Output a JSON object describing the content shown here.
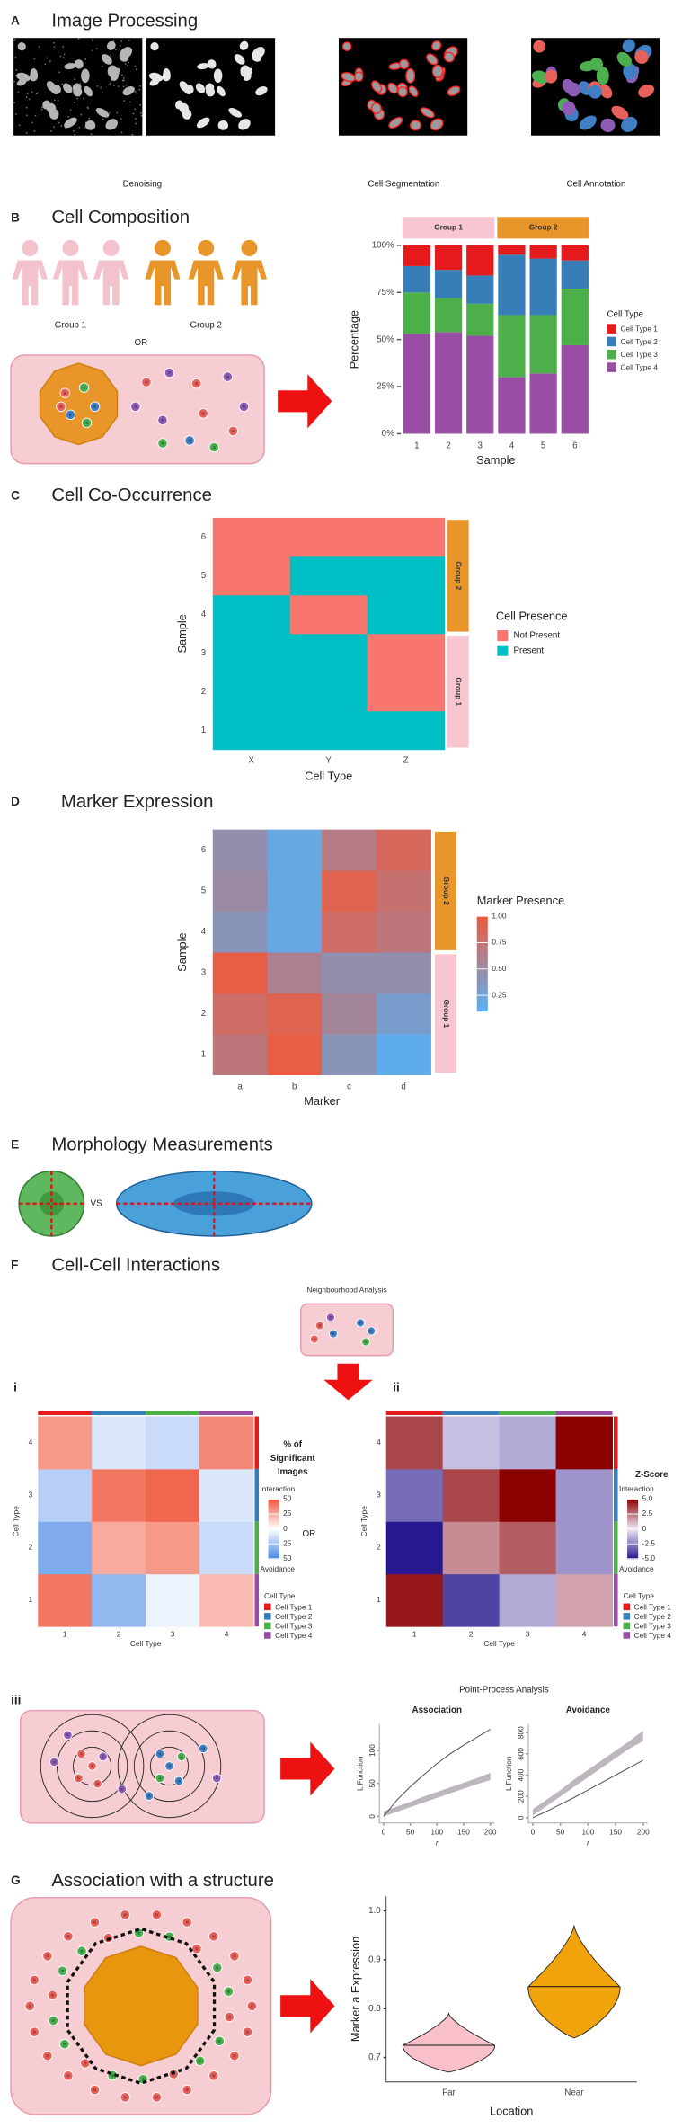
{
  "panels": {
    "A": {
      "letter": "A",
      "title": "Image Processing",
      "labels": [
        "Denoising",
        "Cell Segmentation",
        "Cell Annotation"
      ]
    },
    "B": {
      "letter": "B",
      "title": "Cell Composition",
      "groups": [
        "Group 1",
        "Group 2"
      ],
      "or": "OR"
    },
    "C": {
      "letter": "C",
      "title": "Cell Co-Occurrence"
    },
    "D": {
      "letter": "D",
      "title": "Marker Expression"
    },
    "E": {
      "letter": "E",
      "title": "Morphology Measurements",
      "vs": "VS"
    },
    "F": {
      "letter": "F",
      "title": "Cell-Cell Interactions",
      "subtitle": "Neighbourhood Analysis",
      "sub": [
        "i",
        "ii",
        "iii"
      ],
      "or": "OR",
      "point_process": "Point-Process Analysis"
    },
    "G": {
      "letter": "G",
      "title": "Association with a structure"
    }
  },
  "chart_data": [
    {
      "type": "stacked_bar",
      "x_label": "Sample",
      "y_label": "Percentage",
      "categories": [
        "1",
        "2",
        "3",
        "4",
        "5",
        "6"
      ],
      "groups": [
        {
          "name": "Group 1",
          "color": "#f7c6d0",
          "size": 3
        },
        {
          "name": "Group 2",
          "color": "#e8962a",
          "size": 3
        }
      ],
      "series": [
        {
          "name": "Cell Type 1",
          "color": "#e41a1c",
          "values": [
            11,
            13,
            16,
            5,
            7,
            8
          ]
        },
        {
          "name": "Cell Type 2",
          "color": "#377eb8",
          "values": [
            14,
            15,
            15,
            32,
            30,
            15
          ]
        },
        {
          "name": "Cell Type 3",
          "color": "#4daf4a",
          "values": [
            22,
            18,
            17,
            33,
            31,
            30
          ]
        },
        {
          "name": "Cell Type 4",
          "color": "#984ea3",
          "values": [
            53,
            54,
            52,
            30,
            32,
            47
          ]
        }
      ],
      "legend_title": "Cell Type",
      "ylim": [
        0,
        100
      ],
      "yticks": [
        {
          "value": 0,
          "label": "0%"
        },
        {
          "value": 25,
          "label": "25%"
        },
        {
          "value": 50,
          "label": "50%"
        },
        {
          "value": 75,
          "label": "75%"
        },
        {
          "value": 100,
          "label": "100%"
        }
      ]
    },
    {
      "type": "heatmap",
      "x_label": "Cell Type",
      "y_label": "Sample",
      "categories": [
        "X",
        "Y",
        "Z"
      ],
      "rows": [
        "1",
        "2",
        "3",
        "4",
        "5",
        "6"
      ],
      "values": [
        [
          1,
          1,
          1
        ],
        [
          1,
          1,
          0
        ],
        [
          1,
          1,
          0
        ],
        [
          1,
          0,
          1
        ],
        [
          0,
          1,
          1
        ],
        [
          0,
          0,
          0
        ]
      ],
      "levels": [
        {
          "name": "Not Present",
          "color": "#f8766d"
        },
        {
          "name": "Present",
          "color": "#00bfc4"
        }
      ],
      "legend_title": "Cell Presence",
      "groups": [
        {
          "name": "Group 1",
          "color": "#f7c6d0",
          "size": 3
        },
        {
          "name": "Group 2",
          "color": "#e8962a",
          "size": 3
        }
      ]
    },
    {
      "type": "heatmap",
      "x_label": "Marker",
      "y_label": "Sample",
      "categories": [
        "a",
        "b",
        "c",
        "d"
      ],
      "rows": [
        "1",
        "2",
        "3",
        "4",
        "5",
        "6"
      ],
      "values": [
        [
          0.7,
          0.95,
          0.4,
          0.15
        ],
        [
          0.8,
          0.9,
          0.55,
          0.3
        ],
        [
          0.95,
          0.6,
          0.45,
          0.45
        ],
        [
          0.4,
          0.2,
          0.8,
          0.7
        ],
        [
          0.5,
          0.2,
          0.9,
          0.75
        ],
        [
          0.45,
          0.2,
          0.65,
          0.85
        ]
      ],
      "colors": [
        "#56b1f7",
        "#f0593c"
      ],
      "clim": [
        0.1,
        1.0
      ],
      "legend_title": "Marker Presence",
      "cticks": [
        {
          "value": 1.0,
          "label": "1.00"
        },
        {
          "value": 0.75,
          "label": "0.75"
        },
        {
          "value": 0.5,
          "label": "0.50"
        },
        {
          "value": 0.25,
          "label": "0.25"
        }
      ],
      "groups": [
        {
          "name": "Group 1",
          "color": "#f7c6d0",
          "size": 3
        },
        {
          "name": "Group 2",
          "color": "#e8962a",
          "size": 3
        }
      ]
    },
    {
      "type": "heatmap",
      "x_label": "Cell Type",
      "y_label": "Cell Type",
      "categories": [
        "1",
        "2",
        "3",
        "4"
      ],
      "rows": [
        "1",
        "2",
        "3",
        "4"
      ],
      "values": [
        [
          40,
          -30,
          -5,
          20
        ],
        [
          -35,
          25,
          30,
          -15
        ],
        [
          -20,
          40,
          45,
          -10
        ],
        [
          30,
          -10,
          -15,
          35
        ]
      ],
      "colors": [
        "#4a88e6",
        "#ffffff",
        "#ef553b"
      ],
      "clim": [
        -50,
        50
      ],
      "legend_title": [
        "% of",
        "Significant",
        "Images"
      ],
      "high_label": "Interaction",
      "low_label": "Avoidance",
      "cticks": [
        50,
        25,
        0,
        {
          "value": -25,
          "label": "25"
        },
        {
          "value": -50,
          "label": "50"
        }
      ],
      "type_legend_title": "Cell Type",
      "type_legend": [
        {
          "name": "Cell Type 1",
          "color": "#e41a1c"
        },
        {
          "name": "Cell Type 2",
          "color": "#377eb8"
        },
        {
          "name": "Cell Type 3",
          "color": "#4daf4a"
        },
        {
          "name": "Cell Type 4",
          "color": "#984ea3"
        }
      ]
    },
    {
      "type": "heatmap",
      "x_label": "Cell Type",
      "y_label": "Cell Type",
      "categories": [
        "1",
        "2",
        "3",
        "4"
      ],
      "rows": [
        "1",
        "2",
        "3",
        "4"
      ],
      "values": [
        [
          4.5,
          -4,
          -1.5,
          1.5
        ],
        [
          -5,
          2,
          3,
          -2
        ],
        [
          -3,
          3.5,
          5,
          -2
        ],
        [
          3.5,
          -1,
          -1.5,
          5
        ]
      ],
      "colors": [
        "#26198f",
        "#efe8f5",
        "#8b0000"
      ],
      "clim": [
        -5,
        5
      ],
      "legend_title": [
        "Z-Score"
      ],
      "high_label": "Interaction",
      "low_label": "Avoidance",
      "cticks": [
        {
          "value": 5,
          "label": "5.0"
        },
        2.5,
        0,
        -2.5,
        {
          "value": -5,
          "label": "-5.0"
        }
      ],
      "type_legend_title": "Cell Type",
      "type_legend": [
        {
          "name": "Cell Type 1",
          "color": "#e41a1c"
        },
        {
          "name": "Cell Type 2",
          "color": "#377eb8"
        },
        {
          "name": "Cell Type 3",
          "color": "#4daf4a"
        },
        {
          "name": "Cell Type 4",
          "color": "#984ea3"
        }
      ]
    },
    {
      "type": "line",
      "title": "Association",
      "x_label": "r",
      "y_label": "L Function",
      "x": [
        0,
        25,
        50,
        75,
        100,
        125,
        150,
        175,
        200
      ],
      "values": [
        0,
        25,
        45,
        63,
        80,
        95,
        108,
        120,
        132
      ],
      "band_lower": [
        0,
        7,
        14,
        21,
        28,
        35,
        42,
        49,
        55
      ],
      "band_upper": [
        8,
        15,
        22,
        30,
        37,
        44,
        51,
        58,
        66
      ],
      "color": "#555555",
      "band_color": "#b3a9b3",
      "xlim": [
        -8,
        208
      ],
      "xticks": [
        0,
        50,
        100,
        150,
        200
      ],
      "ylim": [
        -10,
        140
      ],
      "yticks": [
        0,
        50,
        100
      ]
    },
    {
      "type": "line",
      "title": "Avoidance",
      "x_label": "r",
      "y_label": "L Function",
      "x": [
        0,
        25,
        50,
        75,
        100,
        125,
        150,
        175,
        200
      ],
      "values": [
        0,
        60,
        125,
        190,
        260,
        330,
        400,
        470,
        540
      ],
      "band_lower": [
        20,
        110,
        200,
        290,
        380,
        470,
        560,
        650,
        720
      ],
      "band_upper": [
        80,
        170,
        260,
        360,
        450,
        540,
        630,
        720,
        820
      ],
      "color": "#555555",
      "band_color": "#b3a9b3",
      "xlim": [
        -8,
        208
      ],
      "xticks": [
        0,
        50,
        100,
        150,
        200
      ],
      "ylim": [
        -50,
        880
      ],
      "yticks": [
        0,
        200,
        400,
        600,
        800
      ]
    },
    {
      "type": "violin",
      "x_label": "Location",
      "y_label": "Marker a Expression",
      "categories": [
        "Far",
        "Near"
      ],
      "min": [
        0.67,
        0.74
      ],
      "median": [
        0.725,
        0.845
      ],
      "max": [
        0.79,
        0.97
      ],
      "colors": [
        "#f9c0cb",
        "#f0a30a"
      ],
      "ylim": [
        0.65,
        1.03
      ],
      "yticks": [
        0.7,
        0.8,
        0.9,
        {
          "value": 1.0,
          "label": "1.0"
        }
      ]
    }
  ]
}
